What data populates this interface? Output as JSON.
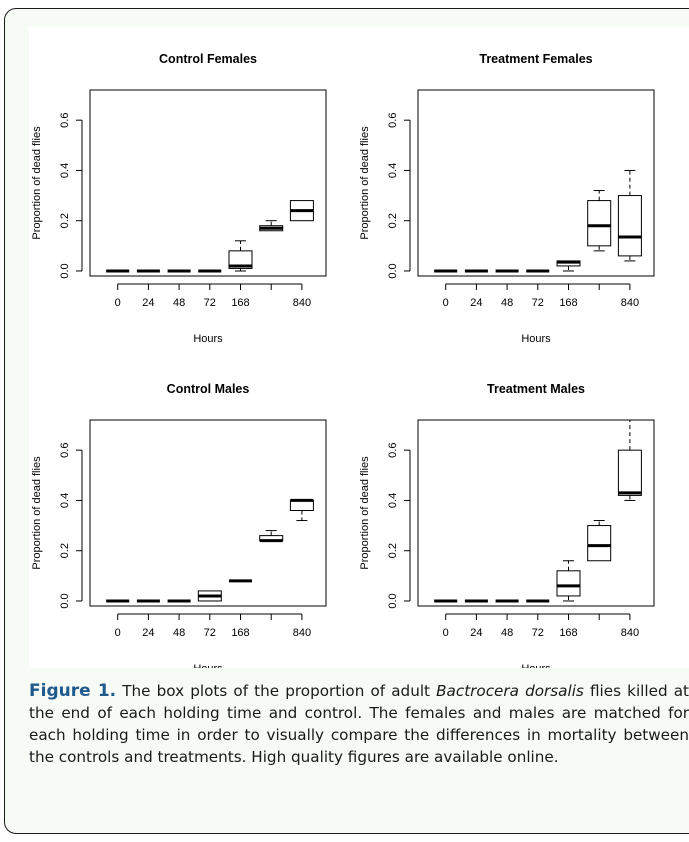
{
  "chart_data": [
    {
      "type": "box",
      "title": "Control Females",
      "xlabel": "Hours",
      "ylabel": "Proportion of dead flies",
      "ylim": [
        -0.02,
        0.72
      ],
      "yticks": [
        "0.0",
        "0.2",
        "0.4",
        "0.6"
      ],
      "categories": [
        "0",
        "24",
        "48",
        "72",
        "168",
        "",
        "840"
      ],
      "boxes": [
        {
          "min": 0,
          "q1": 0,
          "median": 0,
          "q3": 0,
          "max": 0
        },
        {
          "min": 0,
          "q1": 0,
          "median": 0,
          "q3": 0,
          "max": 0
        },
        {
          "min": 0,
          "q1": 0,
          "median": 0,
          "q3": 0,
          "max": 0
        },
        {
          "min": 0,
          "q1": 0,
          "median": 0,
          "q3": 0,
          "max": 0
        },
        {
          "min": 0,
          "q1": 0.01,
          "median": 0.02,
          "q3": 0.08,
          "max": 0.12
        },
        {
          "min": 0.16,
          "q1": 0.16,
          "median": 0.17,
          "q3": 0.18,
          "max": 0.2
        },
        {
          "min": 0.2,
          "q1": 0.2,
          "median": 0.24,
          "q3": 0.28,
          "max": 0.28
        }
      ]
    },
    {
      "type": "box",
      "title": "Treatment Females",
      "xlabel": "Hours",
      "ylabel": "Proportion of dead flies",
      "ylim": [
        -0.02,
        0.72
      ],
      "yticks": [
        "0.0",
        "0.2",
        "0.4",
        "0.6"
      ],
      "categories": [
        "0",
        "24",
        "48",
        "72",
        "168",
        "",
        "840"
      ],
      "boxes": [
        {
          "min": 0,
          "q1": 0,
          "median": 0,
          "q3": 0,
          "max": 0
        },
        {
          "min": 0,
          "q1": 0,
          "median": 0,
          "q3": 0,
          "max": 0
        },
        {
          "min": 0,
          "q1": 0,
          "median": 0,
          "q3": 0,
          "max": 0
        },
        {
          "min": 0,
          "q1": 0,
          "median": 0,
          "q3": 0,
          "max": 0
        },
        {
          "min": 0,
          "q1": 0.02,
          "median": 0.035,
          "q3": 0.04,
          "max": 0.04
        },
        {
          "min": 0.08,
          "q1": 0.1,
          "median": 0.18,
          "q3": 0.28,
          "max": 0.32
        },
        {
          "min": 0.04,
          "q1": 0.06,
          "median": 0.135,
          "q3": 0.3,
          "max": 0.4
        }
      ]
    },
    {
      "type": "box",
      "title": "Control Males",
      "xlabel": "Hours",
      "ylabel": "Proportion of dead flies",
      "ylim": [
        -0.02,
        0.72
      ],
      "yticks": [
        "0.0",
        "0.2",
        "0.4",
        "0.6"
      ],
      "categories": [
        "0",
        "24",
        "48",
        "72",
        "168",
        "",
        "840"
      ],
      "boxes": [
        {
          "min": 0,
          "q1": 0,
          "median": 0,
          "q3": 0,
          "max": 0
        },
        {
          "min": 0,
          "q1": 0,
          "median": 0,
          "q3": 0,
          "max": 0
        },
        {
          "min": 0,
          "q1": 0,
          "median": 0,
          "q3": 0,
          "max": 0
        },
        {
          "min": 0,
          "q1": 0,
          "median": 0.02,
          "q3": 0.04,
          "max": 0.04
        },
        {
          "min": 0.08,
          "q1": 0.08,
          "median": 0.08,
          "q3": 0.08,
          "max": 0.08
        },
        {
          "min": 0.24,
          "q1": 0.24,
          "median": 0.24,
          "q3": 0.26,
          "max": 0.28
        },
        {
          "min": 0.32,
          "q1": 0.36,
          "median": 0.4,
          "q3": 0.4,
          "max": 0.4
        }
      ]
    },
    {
      "type": "box",
      "title": "Treatment Males",
      "xlabel": "Hours",
      "ylabel": "Proportion of dead flies",
      "ylim": [
        -0.02,
        0.72
      ],
      "yticks": [
        "0.0",
        "0.2",
        "0.4",
        "0.6"
      ],
      "categories": [
        "0",
        "24",
        "48",
        "72",
        "168",
        "",
        "840"
      ],
      "boxes": [
        {
          "min": 0,
          "q1": 0,
          "median": 0,
          "q3": 0,
          "max": 0
        },
        {
          "min": 0,
          "q1": 0,
          "median": 0,
          "q3": 0,
          "max": 0
        },
        {
          "min": 0,
          "q1": 0,
          "median": 0,
          "q3": 0,
          "max": 0
        },
        {
          "min": 0,
          "q1": 0,
          "median": 0,
          "q3": 0,
          "max": 0
        },
        {
          "min": 0,
          "q1": 0.02,
          "median": 0.06,
          "q3": 0.12,
          "max": 0.16
        },
        {
          "min": 0.16,
          "q1": 0.16,
          "median": 0.22,
          "q3": 0.3,
          "max": 0.32
        },
        {
          "min": 0.4,
          "q1": 0.42,
          "median": 0.43,
          "q3": 0.6,
          "max": 0.72
        }
      ]
    }
  ],
  "caption": {
    "label": "Figure 1.",
    "text_before_species": " The box plots of the proportion of adult ",
    "species": "Bactrocera dorsalis",
    "text_after_species": " flies killed at the end of each holding time and control. The females and males are matched for each holding time in order to visually compare the differences in mortality between the controls and treatments. High quality figures are available online."
  },
  "colors": {
    "frame_border": "#1a1a1a",
    "frame_background": "#f6fbf5",
    "figure_label": "#1f5a8f",
    "ink": "#000000"
  }
}
